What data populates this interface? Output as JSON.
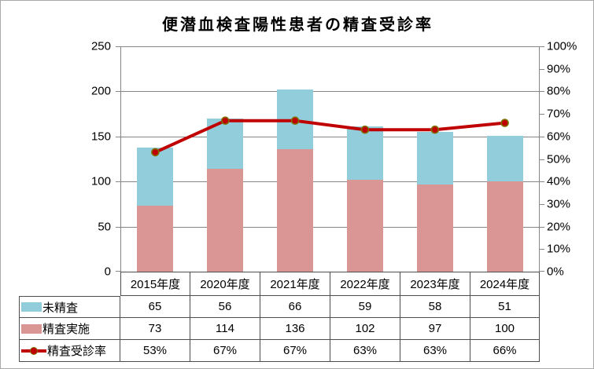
{
  "chart_data": {
    "type": "bar",
    "subtype": "stacked-column-with-line",
    "title": "便潜血検査陽性患者の精査受診率",
    "categories": [
      "2015年度",
      "2020年度",
      "2021年度",
      "2022年度",
      "2023年度",
      "2024年度"
    ],
    "series": [
      {
        "name": "未精査",
        "type": "bar",
        "role": "stack-top",
        "values": [
          65,
          56,
          66,
          59,
          58,
          51
        ],
        "color": "#92CDDC"
      },
      {
        "name": "精査実施",
        "type": "bar",
        "role": "stack-bottom",
        "values": [
          73,
          114,
          136,
          102,
          97,
          100
        ],
        "color": "#D99694"
      },
      {
        "name": "精査受診率",
        "type": "line",
        "axis": "secondary",
        "values": [
          53,
          67,
          67,
          63,
          63,
          66
        ],
        "labels": [
          "53%",
          "67%",
          "67%",
          "63%",
          "63%",
          "66%"
        ],
        "color": "#C00000"
      }
    ],
    "left_axis": {
      "min": 0,
      "max": 250,
      "step": 50,
      "ticks": [
        "0",
        "50",
        "100",
        "150",
        "200",
        "250"
      ]
    },
    "right_axis": {
      "min": 0,
      "max": 100,
      "step": 10,
      "ticks": [
        "0%",
        "10%",
        "20%",
        "30%",
        "40%",
        "50%",
        "60%",
        "70%",
        "80%",
        "90%",
        "100%"
      ]
    },
    "grid": "horizontal-major-left-axis",
    "legend_position": "data-table-left-column"
  },
  "colors": {
    "bar_top": "#92CDDC",
    "bar_bottom": "#D99694",
    "line": "#C00000",
    "marker_fill": "#C00000",
    "marker_ring": "#7F7000",
    "grid": "#868686",
    "axis": "#868686",
    "table_border": "#4D4D4D",
    "text": "#000000",
    "chart_border": "#A9A9A9",
    "background": "#FFFFFF"
  }
}
